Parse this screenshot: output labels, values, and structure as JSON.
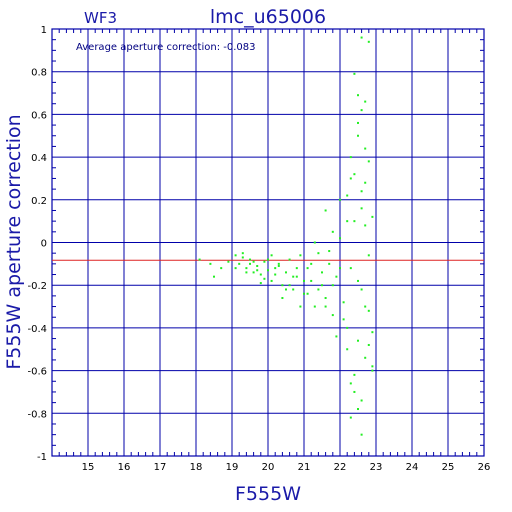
{
  "chart_data": {
    "type": "scatter",
    "title": "lmc_u65006",
    "chip": "WF3",
    "xlabel": "F555W",
    "ylabel": "F555W aperture correction",
    "annotation": "Average aperture correction: -0.083",
    "xlim": [
      14,
      26
    ],
    "ylim": [
      -1,
      1
    ],
    "xticks": [
      "15",
      "16",
      "17",
      "18",
      "19",
      "20",
      "21",
      "22",
      "23",
      "24",
      "25",
      "26"
    ],
    "yticks": [
      "1",
      "0.8",
      "0.6",
      "0.4",
      "0.2",
      "0",
      "-0.2",
      "-0.4",
      "-0.6",
      "-0.8",
      "-1"
    ],
    "xtick_values": [
      15,
      16,
      17,
      18,
      19,
      20,
      21,
      22,
      23,
      24,
      25,
      26
    ],
    "ytick_values": [
      1,
      0.8,
      0.6,
      0.4,
      0.2,
      0,
      -0.2,
      -0.4,
      -0.6,
      -0.8,
      -1
    ],
    "grid": true,
    "reference_line": -0.083,
    "colors": {
      "points": "#22ee22",
      "reference_line": "#dd2222",
      "grid": "#0000aa",
      "text": "#1a1aa8"
    },
    "x": [
      18.1,
      18.4,
      18.5,
      18.7,
      18.9,
      19.1,
      19.2,
      19.3,
      19.4,
      19.5,
      19.6,
      19.7,
      19.8,
      19.9,
      20.0,
      20.1,
      20.2,
      20.3,
      20.4,
      20.5,
      20.6,
      20.7,
      20.8,
      20.9,
      21.0,
      21.1,
      21.2,
      21.3,
      21.4,
      21.5,
      21.6,
      21.7,
      21.8,
      21.9,
      22.0,
      22.1,
      22.2,
      22.3,
      22.4,
      22.5,
      22.6,
      22.7,
      22.8,
      22.9,
      22.3,
      22.5,
      22.6,
      22.7,
      22.4,
      22.2,
      22.1,
      21.9,
      21.8,
      21.6,
      22.0,
      22.3,
      22.5,
      22.7,
      22.9,
      22.2,
      22.4,
      22.6,
      22.8,
      21.7,
      21.5,
      21.3,
      21.1,
      20.9,
      20.7,
      20.5,
      20.3,
      20.1,
      19.9,
      19.7,
      19.5,
      19.3,
      19.1,
      19.4,
      19.6,
      19.8,
      20.0,
      20.2,
      20.4,
      20.6,
      20.8,
      21.0,
      21.2,
      21.4,
      21.6,
      21.8,
      22.0,
      22.2,
      22.4,
      22.6,
      22.8,
      22.5,
      22.7,
      22.9,
      22.3,
      22.6,
      22.8,
      22.4,
      22.5,
      22.7,
      22.6,
      22.8,
      22.9,
      22.5,
      22.6,
      22.3,
      22.7
    ],
    "y": [
      -0.08,
      -0.1,
      -0.16,
      -0.12,
      -0.09,
      -0.06,
      -0.1,
      -0.07,
      -0.12,
      -0.08,
      -0.14,
      -0.11,
      -0.15,
      -0.09,
      -0.13,
      -0.18,
      -0.12,
      -0.1,
      -0.2,
      -0.14,
      -0.08,
      -0.22,
      -0.16,
      -0.06,
      -0.24,
      -0.12,
      -0.18,
      -0.3,
      -0.05,
      -0.2,
      -0.26,
      -0.1,
      -0.34,
      -0.16,
      0.02,
      -0.28,
      -0.4,
      -0.12,
      0.1,
      -0.46,
      -0.22,
      -0.54,
      -0.32,
      -0.6,
      0.3,
      0.5,
      0.62,
      0.08,
      -0.7,
      -0.5,
      -0.36,
      -0.44,
      0.05,
      0.15,
      0.2,
      0.4,
      -0.18,
      -0.3,
      -0.42,
      0.1,
      -0.62,
      -0.74,
      -0.48,
      -0.04,
      -0.14,
      0.0,
      -0.24,
      -0.3,
      -0.16,
      -0.22,
      -0.11,
      -0.06,
      -0.17,
      -0.13,
      -0.1,
      -0.05,
      -0.12,
      -0.14,
      -0.09,
      -0.19,
      -0.08,
      -0.15,
      -0.26,
      -0.2,
      -0.12,
      -0.18,
      -0.1,
      -0.22,
      -0.3,
      -0.2,
      -0.12,
      0.22,
      0.32,
      0.16,
      -0.06,
      0.56,
      0.28,
      0.12,
      -0.82,
      0.96,
      0.94,
      0.79,
      0.69,
      0.66,
      -0.9,
      0.38,
      -0.58,
      -0.78,
      0.24,
      -0.66,
      0.44
    ]
  }
}
